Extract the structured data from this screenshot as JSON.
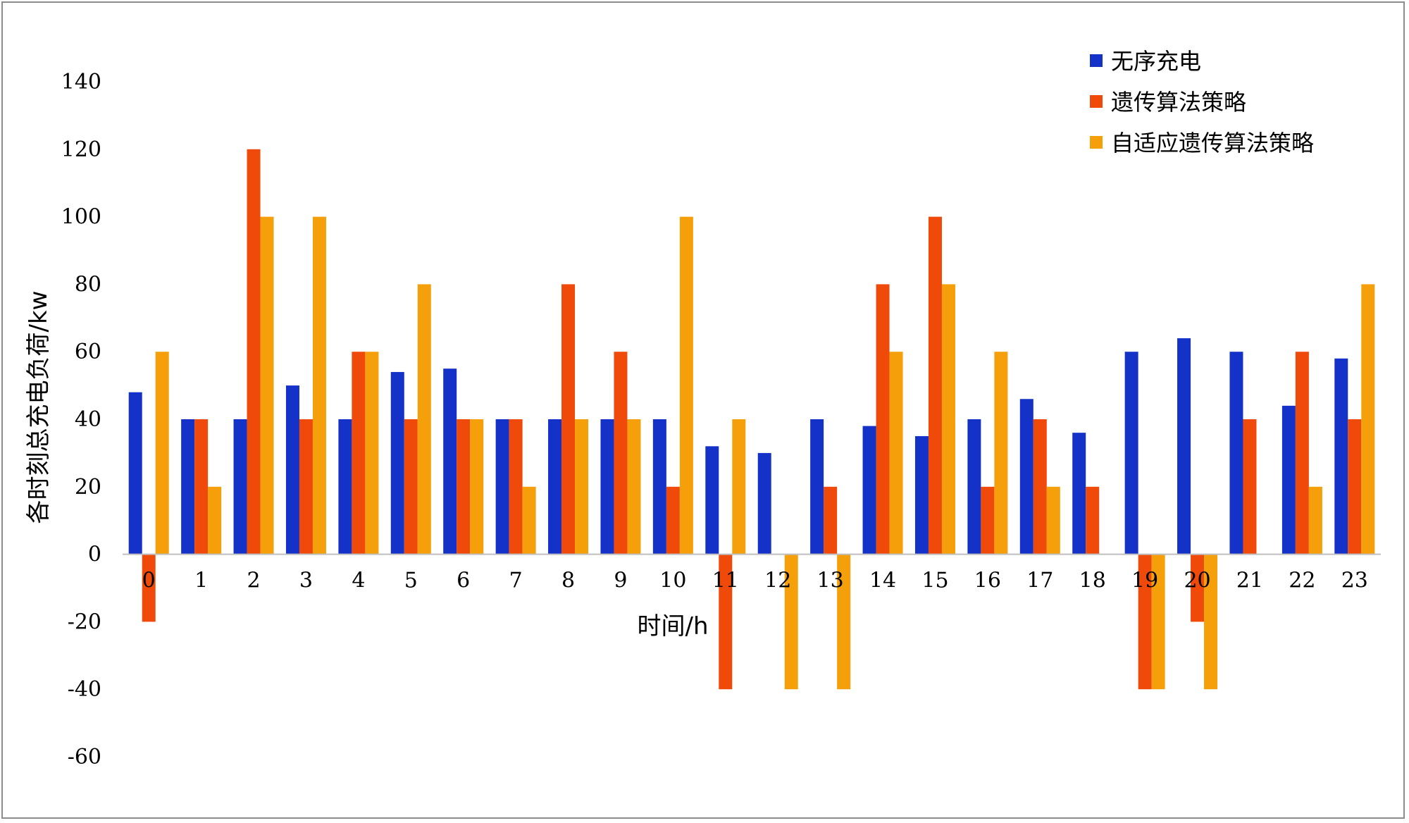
{
  "chart_data": {
    "type": "bar",
    "title": "",
    "xlabel": "时间/h",
    "ylabel": "各时刻总充电负荷/kw",
    "ylim": [
      -60,
      140
    ],
    "yticks": [
      "140",
      "120",
      "100",
      "80",
      "60",
      "40",
      "20",
      "0",
      "-20",
      "-40",
      "-60"
    ],
    "ytick_values": [
      140,
      120,
      100,
      80,
      60,
      40,
      20,
      0,
      -20,
      -40,
      -60
    ],
    "categories": [
      "0",
      "1",
      "2",
      "3",
      "4",
      "5",
      "6",
      "7",
      "8",
      "9",
      "10",
      "11",
      "12",
      "13",
      "14",
      "15",
      "16",
      "17",
      "18",
      "19",
      "20",
      "21",
      "22",
      "23"
    ],
    "grid": false,
    "legend_position": "top-right",
    "series": [
      {
        "name": "无序充电",
        "color": "#1432C8",
        "values": [
          48,
          40,
          40,
          50,
          40,
          54,
          55,
          40,
          40,
          40,
          40,
          32,
          30,
          40,
          38,
          35,
          40,
          46,
          36,
          60,
          64,
          60,
          44,
          58
        ]
      },
      {
        "name": "遗传算法策略",
        "color": "#F04A0A",
        "values": [
          -20,
          40,
          120,
          40,
          60,
          40,
          40,
          40,
          80,
          60,
          20,
          -40,
          0,
          20,
          80,
          100,
          20,
          40,
          20,
          -40,
          -20,
          40,
          60,
          40
        ]
      },
      {
        "name": "自适应遗传算法策略",
        "color": "#F5A00A",
        "values": [
          60,
          20,
          100,
          100,
          60,
          80,
          40,
          20,
          40,
          40,
          100,
          40,
          -40,
          -40,
          60,
          80,
          60,
          20,
          0,
          -40,
          -40,
          0,
          20,
          80
        ]
      }
    ]
  }
}
